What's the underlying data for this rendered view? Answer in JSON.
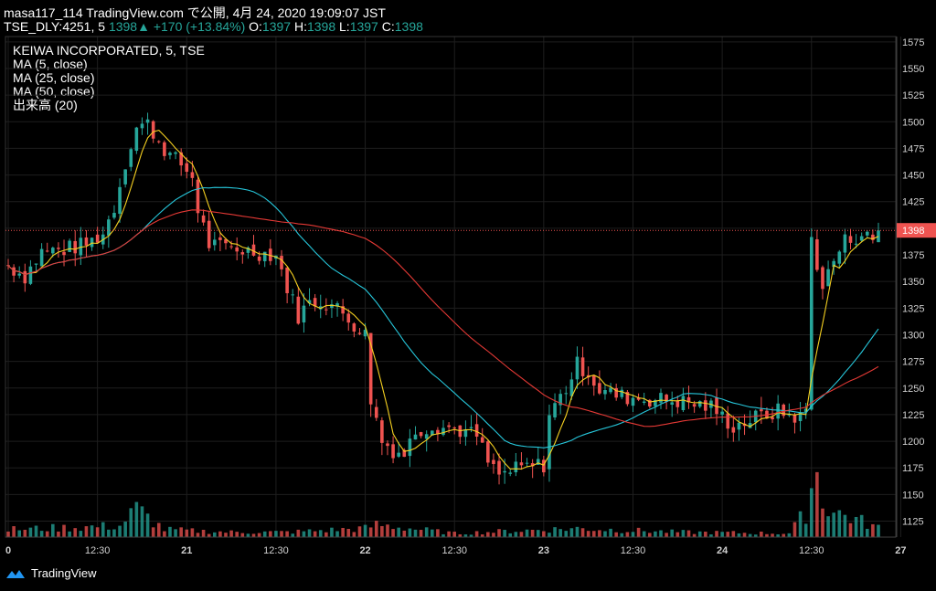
{
  "header": {
    "line1": "masa117_114 TradingView.com で公開, 4月 24, 2020 19:09:07 JST",
    "symbol": "TSE_DLY:4251, 5",
    "last": "1398",
    "change_arrow": "▲",
    "change": "+170 (+13.84%)",
    "o_label": "O:",
    "o": "1397",
    "h_label": "H:",
    "h": "1398",
    "l_label": "L:",
    "l": "1397",
    "c_label": "C:",
    "c": "1398"
  },
  "legend": [
    "KEIWA INCORPORATED, 5, TSE",
    "MA (5, close)",
    "MA (25, close)",
    "MA (50, close)",
    "出来高 (20)"
  ],
  "footer": {
    "brand": "TradingView"
  },
  "colors": {
    "up": "#26a69a",
    "down": "#ef5350",
    "ma5": "#f5d020",
    "ma25": "#26c6da",
    "ma50": "#e53935",
    "price_line": "#ef5350"
  },
  "chart_data": {
    "type": "candlestick",
    "title": "KEIWA INCORPORATED, 5, TSE",
    "last_price": 1398,
    "ylim": [
      1110,
      1580
    ],
    "y_ticks": [
      1125,
      1150,
      1175,
      1200,
      1225,
      1250,
      1275,
      1300,
      1325,
      1350,
      1375,
      1400,
      1425,
      1450,
      1475,
      1500,
      1525,
      1550,
      1575
    ],
    "x_tick_labels": [
      "0",
      "12:30",
      "21",
      "12:30",
      "22",
      "12:30",
      "23",
      "12:30",
      "24",
      "12:30",
      "27"
    ],
    "x_tick_index": [
      0,
      16,
      32,
      48,
      64,
      80,
      96,
      112,
      128,
      144,
      160
    ],
    "bar_count": 157,
    "price_anchors": [
      [
        0,
        1365
      ],
      [
        3,
        1355
      ],
      [
        6,
        1378
      ],
      [
        10,
        1380
      ],
      [
        14,
        1385
      ],
      [
        17,
        1395
      ],
      [
        19,
        1420
      ],
      [
        21,
        1462
      ],
      [
        23,
        1495
      ],
      [
        25,
        1498
      ],
      [
        27,
        1482
      ],
      [
        29,
        1468
      ],
      [
        31,
        1460
      ],
      [
        33,
        1448
      ],
      [
        34,
        1418
      ],
      [
        36,
        1385
      ],
      [
        38,
        1382
      ],
      [
        40,
        1382
      ],
      [
        44,
        1378
      ],
      [
        48,
        1375
      ],
      [
        50,
        1345
      ],
      [
        52,
        1318
      ],
      [
        54,
        1330
      ],
      [
        56,
        1332
      ],
      [
        58,
        1328
      ],
      [
        60,
        1320
      ],
      [
        62,
        1310
      ],
      [
        64,
        1300
      ],
      [
        65,
        1240
      ],
      [
        67,
        1200
      ],
      [
        69,
        1192
      ],
      [
        71,
        1188
      ],
      [
        73,
        1210
      ],
      [
        76,
        1215
      ],
      [
        80,
        1212
      ],
      [
        84,
        1205
      ],
      [
        86,
        1180
      ],
      [
        88,
        1168
      ],
      [
        92,
        1175
      ],
      [
        96,
        1178
      ],
      [
        97,
        1225
      ],
      [
        100,
        1250
      ],
      [
        102,
        1272
      ],
      [
        104,
        1265
      ],
      [
        106,
        1248
      ],
      [
        110,
        1242
      ],
      [
        114,
        1240
      ],
      [
        120,
        1238
      ],
      [
        126,
        1232
      ],
      [
        130,
        1214
      ],
      [
        134,
        1222
      ],
      [
        138,
        1228
      ],
      [
        142,
        1222
      ],
      [
        143,
        1230
      ],
      [
        144,
        1390
      ],
      [
        146,
        1345
      ],
      [
        148,
        1370
      ],
      [
        150,
        1388
      ],
      [
        153,
        1395
      ],
      [
        156,
        1385
      ]
    ],
    "volume_anchors": [
      [
        0,
        12
      ],
      [
        20,
        18
      ],
      [
        23,
        45
      ],
      [
        28,
        12
      ],
      [
        33,
        10
      ],
      [
        40,
        8
      ],
      [
        50,
        8
      ],
      [
        64,
        14
      ],
      [
        66,
        20
      ],
      [
        80,
        6
      ],
      [
        96,
        12
      ],
      [
        102,
        14
      ],
      [
        120,
        8
      ],
      [
        140,
        6
      ],
      [
        143,
        40
      ],
      [
        144,
        85
      ],
      [
        145,
        100
      ],
      [
        146,
        60
      ],
      [
        148,
        40
      ],
      [
        150,
        35
      ],
      [
        153,
        25
      ],
      [
        156,
        15
      ]
    ],
    "series": [
      {
        "name": "MA (5, close)",
        "period": 5
      },
      {
        "name": "MA (25, close)",
        "period": 25
      },
      {
        "name": "MA (50, close)",
        "period": 50
      },
      {
        "name": "出来高 (20)",
        "type": "volume"
      }
    ]
  }
}
